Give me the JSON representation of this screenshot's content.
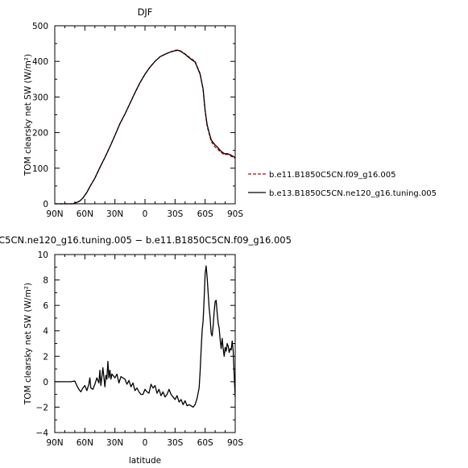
{
  "chart_data": [
    {
      "type": "line",
      "title": "DJF",
      "xlabel": "",
      "ylabel": "TOM clearsky net SW (W/m²)",
      "xlim": [
        90,
        -90
      ],
      "ylim": [
        0,
        500
      ],
      "x_ticks": [
        90,
        60,
        30,
        0,
        -30,
        -60,
        -90
      ],
      "x_tick_labels": [
        "90N",
        "60N",
        "30N",
        "0",
        "30S",
        "60S",
        "90S"
      ],
      "y_ticks": [
        0,
        100,
        200,
        300,
        400,
        500
      ],
      "y_tick_labels": [
        "0",
        "100",
        "200",
        "300",
        "400",
        "500"
      ],
      "legend_position": "right",
      "series": [
        {
          "name": "b.e11.B1850C5CN.f09_g16.005",
          "color": "#cc0000",
          "dash": "dashed",
          "x": [
            90,
            80,
            72,
            70,
            67,
            65,
            62,
            58,
            55,
            50,
            45,
            40,
            35,
            30,
            25,
            20,
            15,
            10,
            5,
            0,
            -5,
            -10,
            -15,
            -20,
            -25,
            -30,
            -33,
            -35,
            -40,
            -45,
            -50,
            -55,
            -58,
            -60,
            -62,
            -64,
            -66,
            -68,
            -70,
            -72,
            -75,
            -78,
            -80,
            -82,
            -85,
            -88,
            -90
          ],
          "y": [
            0,
            0,
            0,
            2,
            5,
            8,
            16,
            32,
            48,
            72,
            102,
            130,
            160,
            192,
            225,
            252,
            282,
            312,
            340,
            364,
            384,
            400,
            413,
            420,
            426,
            431,
            432,
            430,
            421,
            410,
            400,
            366,
            320,
            260,
            218,
            197,
            175,
            167,
            159,
            155,
            146,
            140,
            138,
            139,
            135,
            130,
            128
          ]
        },
        {
          "name": "b.e13.B1850C5CN.ne120_g16.tuning.005",
          "color": "#000000",
          "dash": "solid",
          "x": [
            90,
            80,
            72,
            70,
            67,
            65,
            62,
            58,
            55,
            50,
            45,
            40,
            35,
            30,
            25,
            20,
            15,
            10,
            5,
            0,
            -5,
            -10,
            -15,
            -20,
            -25,
            -30,
            -33,
            -35,
            -40,
            -45,
            -50,
            -55,
            -58,
            -60,
            -62,
            -64,
            -66,
            -68,
            -70,
            -72,
            -75,
            -78,
            -80,
            -82,
            -85,
            -88,
            -90
          ],
          "y": [
            0,
            0,
            0,
            2,
            5,
            8,
            16,
            32,
            48,
            72,
            102,
            130,
            160,
            192,
            225,
            252,
            282,
            312,
            340,
            364,
            384,
            400,
            413,
            420,
            426,
            430,
            431,
            429,
            420,
            408,
            398,
            364,
            322,
            262,
            222,
            200,
            180,
            172,
            165,
            160,
            150,
            143,
            140,
            141,
            138,
            133,
            130
          ]
        }
      ]
    },
    {
      "type": "line",
      "title": "C5CN.ne120_g16.tuning.005 − b.e11.B1850C5CN.f09_g16.005",
      "xlabel": "latitude",
      "ylabel": "TOM clearsky net SW (W/m²)",
      "xlim": [
        90,
        -90
      ],
      "ylim": [
        -4,
        10
      ],
      "x_ticks": [
        90,
        60,
        30,
        0,
        -30,
        -60,
        -90
      ],
      "x_tick_labels": [
        "90N",
        "60N",
        "30N",
        "0",
        "30S",
        "60S",
        "90S"
      ],
      "y_ticks": [
        -4,
        -2,
        0,
        2,
        4,
        6,
        8,
        10
      ],
      "y_tick_labels": [
        "−4",
        "−2",
        "0",
        "2",
        "4",
        "6",
        "8",
        "10"
      ],
      "series": [
        {
          "color": "#000000",
          "dash": "solid",
          "x": [
            90,
            85,
            80,
            74,
            70,
            68,
            66,
            64,
            62,
            60,
            58,
            56,
            55,
            54,
            52,
            50,
            48,
            46,
            45,
            44,
            42,
            40,
            39,
            38,
            37,
            36,
            35,
            34,
            33,
            32,
            30,
            28,
            26,
            24,
            22,
            20,
            18,
            16,
            14,
            12,
            10,
            8,
            6,
            4,
            2,
            0,
            -2,
            -4,
            -6,
            -8,
            -10,
            -12,
            -14,
            -16,
            -18,
            -20,
            -22,
            -24,
            -26,
            -28,
            -30,
            -32,
            -34,
            -36,
            -38,
            -40,
            -42,
            -44,
            -46,
            -48,
            -50,
            -52,
            -54,
            -55,
            -56,
            -57,
            -58,
            -59,
            -60,
            -61,
            -62,
            -63,
            -64,
            -65,
            -66,
            -67,
            -68,
            -69,
            -70,
            -71,
            -72,
            -73,
            -74,
            -75,
            -76,
            -77,
            -78,
            -79,
            -80,
            -81,
            -82,
            -83,
            -84,
            -85,
            -86,
            -87,
            -88,
            -89,
            -90
          ],
          "y": [
            0,
            0,
            0,
            0,
            0.05,
            -0.3,
            -0.6,
            -0.8,
            -0.5,
            -0.3,
            -0.7,
            -0.2,
            0.3,
            -0.5,
            -0.6,
            -0.2,
            0.3,
            -0.1,
            0.9,
            -0.3,
            1.1,
            -0.4,
            0.5,
            0.2,
            1.6,
            0.3,
            0.9,
            0.2,
            0.6,
            0.5,
            0.3,
            0.6,
            -0.1,
            0.4,
            0.3,
            0.2,
            -0.2,
            0.1,
            -0.4,
            -0.1,
            -0.7,
            -0.5,
            -0.8,
            -1.0,
            -1.0,
            -0.6,
            -0.8,
            -0.9,
            -0.2,
            -0.5,
            -0.3,
            -0.9,
            -0.6,
            -1.1,
            -0.8,
            -1.2,
            -1.0,
            -0.6,
            -1.0,
            -1.2,
            -1.4,
            -1.1,
            -1.6,
            -1.4,
            -1.8,
            -1.5,
            -1.9,
            -1.8,
            -1.9,
            -2.0,
            -1.8,
            -1.3,
            -0.5,
            0.8,
            2.5,
            4.0,
            4.8,
            6.5,
            8.5,
            9.1,
            8.2,
            7.0,
            5.8,
            5.0,
            3.8,
            3.6,
            4.4,
            5.5,
            6.3,
            6.4,
            5.4,
            4.6,
            4.2,
            3.3,
            2.6,
            3.4,
            2.6,
            2.0,
            2.7,
            2.4,
            3.0,
            2.8,
            2.3,
            2.6,
            2.5,
            3.2,
            2.4,
            0.5,
            -1.2
          ]
        }
      ]
    }
  ]
}
